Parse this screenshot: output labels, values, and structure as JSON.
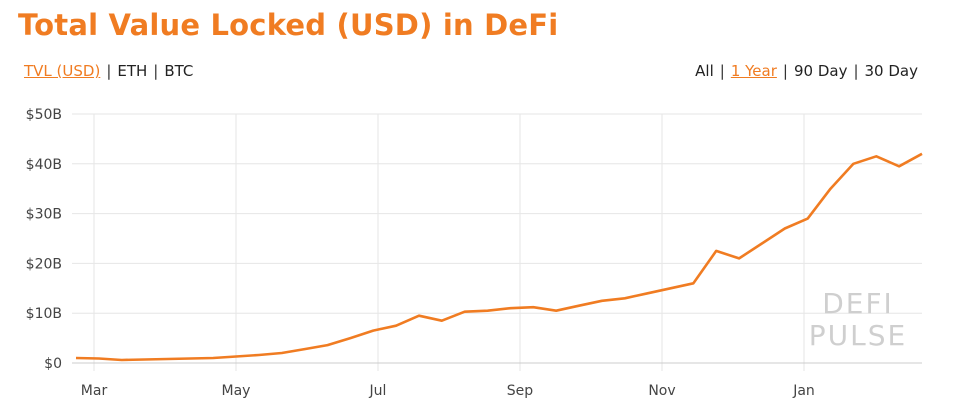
{
  "title": "Total Value Locked (USD) in DeFi",
  "currency_toggle": [
    "TVL (USD)",
    "ETH",
    "BTC"
  ],
  "currency_active": "TVL (USD)",
  "range_toggle": [
    "All",
    "1 Year",
    "90 Day",
    "30 Day"
  ],
  "range_active": "1 Year",
  "watermark": [
    "DEFI",
    "PULSE"
  ],
  "colors": {
    "accent": "#f07c22",
    "grid": "#e6e6e6",
    "text": "#222222",
    "watermark": "#cfcfcf"
  },
  "chart_data": {
    "type": "line",
    "title": "Total Value Locked (USD) in DeFi",
    "xlabel": "",
    "ylabel": "",
    "x_tick_labels": [
      "Mar",
      "May",
      "Jul",
      "Sep",
      "Nov",
      "Jan"
    ],
    "y_tick_labels": [
      "$0",
      "$10B",
      "$20B",
      "$30B",
      "$40B",
      "$50B"
    ],
    "ylim": [
      0,
      50
    ],
    "y_unit": "B USD",
    "grid": true,
    "legend": "none",
    "series": [
      {
        "color": "#f07c22",
        "points": [
          [
            "Feb",
            1.0
          ],
          [
            "Mar",
            0.9
          ],
          [
            "Mar",
            0.6
          ],
          [
            "Apr",
            0.7
          ],
          [
            "Apr",
            0.8
          ],
          [
            "May",
            0.9
          ],
          [
            "Jun",
            1.0
          ],
          [
            "Jun",
            1.3
          ],
          [
            "Jun",
            1.6
          ],
          [
            "Jul",
            2.0
          ],
          [
            "Jul",
            2.8
          ],
          [
            "Aug",
            3.6
          ],
          [
            "Aug",
            5.0
          ],
          [
            "Aug",
            6.5
          ],
          [
            "Sep",
            7.5
          ],
          [
            "Sep",
            9.5
          ],
          [
            "Sep",
            8.5
          ],
          [
            "Oct",
            10.3
          ],
          [
            "Oct",
            10.5
          ],
          [
            "Oct",
            11.0
          ],
          [
            "Oct",
            11.2
          ],
          [
            "Nov",
            10.5
          ],
          [
            "Nov",
            11.5
          ],
          [
            "Nov",
            12.5
          ],
          [
            "Dec",
            13.0
          ],
          [
            "Dec",
            14.0
          ],
          [
            "Dec",
            15.0
          ],
          [
            "Jan",
            16.0
          ],
          [
            "Jan",
            22.5
          ],
          [
            "Jan",
            21.0
          ],
          [
            "Jan",
            24.0
          ],
          [
            "Jan",
            27.0
          ],
          [
            "Jan",
            29.0
          ],
          [
            "Feb",
            35.0
          ],
          [
            "Feb",
            40.0
          ],
          [
            "Feb",
            41.5
          ],
          [
            "Feb",
            39.5
          ],
          [
            "Feb",
            42.0
          ]
        ]
      }
    ]
  }
}
